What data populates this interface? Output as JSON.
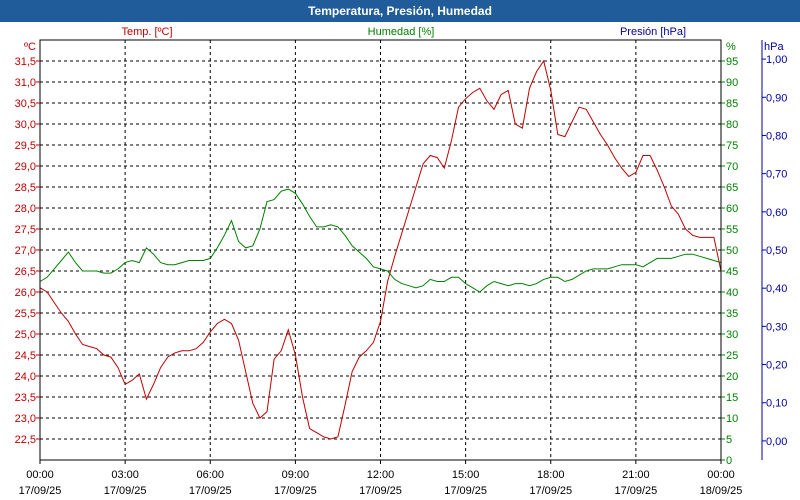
{
  "window": {
    "title": "Temperatura, Presión, Humedad"
  },
  "chart_data": {
    "type": "line",
    "title": "Temperatura, Presión, Humedad",
    "grid": true,
    "x_ticks": [
      {
        "time": "00:00",
        "date": "17/09/25"
      },
      {
        "time": "03:00",
        "date": "17/09/25"
      },
      {
        "time": "06:00",
        "date": "17/09/25"
      },
      {
        "time": "09:00",
        "date": "17/09/25"
      },
      {
        "time": "12:00",
        "date": "17/09/25"
      },
      {
        "time": "15:00",
        "date": "17/09/25"
      },
      {
        "time": "18:00",
        "date": "17/09/25"
      },
      {
        "time": "21:00",
        "date": "17/09/25"
      },
      {
        "time": "00:00",
        "date": "18/09/25"
      }
    ],
    "x_range_hours": [
      0,
      24
    ],
    "axes": {
      "temperature": {
        "label": "Temp. [ºC]",
        "unit": "ºC",
        "range": [
          22.0,
          32.0
        ],
        "ticks": [
          "22,5",
          "23,0",
          "23,5",
          "24,0",
          "24,5",
          "25,0",
          "25,5",
          "26,0",
          "26,5",
          "27,0",
          "27,5",
          "28,0",
          "28,5",
          "29,0",
          "29,5",
          "30,0",
          "30,5",
          "31,0",
          "31,5"
        ],
        "color": "#c00000"
      },
      "humidity": {
        "label": "Humedad [%]",
        "unit": "%",
        "range": [
          0,
          100
        ],
        "ticks": [
          "0",
          "5",
          "10",
          "15",
          "20",
          "25",
          "30",
          "35",
          "40",
          "45",
          "50",
          "55",
          "60",
          "65",
          "70",
          "75",
          "80",
          "85",
          "90",
          "95"
        ],
        "color": "#008000"
      },
      "pressure": {
        "label": "Presión [hPa]",
        "unit": "hPa",
        "range": [
          -0.05,
          1.05
        ],
        "ticks": [
          "0,00",
          "0,10",
          "0,20",
          "0,30",
          "0,40",
          "0,50",
          "0,60",
          "0,70",
          "0,80",
          "0,90",
          "1,00"
        ],
        "color": "#0000a0"
      }
    },
    "series": [
      {
        "name": "Temp. [ºC]",
        "axis": "temperature",
        "color": "#c00000",
        "points": [
          [
            0.0,
            26.1
          ],
          [
            0.25,
            26.0
          ],
          [
            0.5,
            25.75
          ],
          [
            0.75,
            25.5
          ],
          [
            1.0,
            25.3
          ],
          [
            1.25,
            25.0
          ],
          [
            1.5,
            24.75
          ],
          [
            1.75,
            24.7
          ],
          [
            2.0,
            24.65
          ],
          [
            2.25,
            24.5
          ],
          [
            2.5,
            24.45
          ],
          [
            2.75,
            24.2
          ],
          [
            3.0,
            23.8
          ],
          [
            3.25,
            23.9
          ],
          [
            3.5,
            24.05
          ],
          [
            3.75,
            23.45
          ],
          [
            4.0,
            23.8
          ],
          [
            4.25,
            24.2
          ],
          [
            4.5,
            24.45
          ],
          [
            4.75,
            24.55
          ],
          [
            5.0,
            24.6
          ],
          [
            5.25,
            24.6
          ],
          [
            5.5,
            24.65
          ],
          [
            5.75,
            24.8
          ],
          [
            6.0,
            25.05
          ],
          [
            6.25,
            25.25
          ],
          [
            6.5,
            25.35
          ],
          [
            6.75,
            25.25
          ],
          [
            7.0,
            24.85
          ],
          [
            7.25,
            24.1
          ],
          [
            7.5,
            23.35
          ],
          [
            7.75,
            23.0
          ],
          [
            8.0,
            23.15
          ],
          [
            8.25,
            24.4
          ],
          [
            8.5,
            24.6
          ],
          [
            8.75,
            25.1
          ],
          [
            9.0,
            24.5
          ],
          [
            9.25,
            23.5
          ],
          [
            9.5,
            22.75
          ],
          [
            9.75,
            22.65
          ],
          [
            10.0,
            22.55
          ],
          [
            10.25,
            22.5
          ],
          [
            10.5,
            22.55
          ],
          [
            10.75,
            23.3
          ],
          [
            11.0,
            24.1
          ],
          [
            11.25,
            24.45
          ],
          [
            11.5,
            24.6
          ],
          [
            11.75,
            24.8
          ],
          [
            12.0,
            25.3
          ],
          [
            12.25,
            26.25
          ],
          [
            12.5,
            26.85
          ],
          [
            12.75,
            27.4
          ],
          [
            13.0,
            27.95
          ],
          [
            13.25,
            28.5
          ],
          [
            13.5,
            29.05
          ],
          [
            13.75,
            29.25
          ],
          [
            14.0,
            29.2
          ],
          [
            14.25,
            28.95
          ],
          [
            14.5,
            29.6
          ],
          [
            14.75,
            30.4
          ],
          [
            15.0,
            30.6
          ],
          [
            15.25,
            30.75
          ],
          [
            15.5,
            30.85
          ],
          [
            15.75,
            30.55
          ],
          [
            16.0,
            30.35
          ],
          [
            16.25,
            30.7
          ],
          [
            16.5,
            30.8
          ],
          [
            16.75,
            30.0
          ],
          [
            17.0,
            29.9
          ],
          [
            17.25,
            30.85
          ],
          [
            17.5,
            31.25
          ],
          [
            17.75,
            31.5
          ],
          [
            18.0,
            30.8
          ],
          [
            18.25,
            29.75
          ],
          [
            18.5,
            29.7
          ],
          [
            18.75,
            30.05
          ],
          [
            19.0,
            30.4
          ],
          [
            19.25,
            30.35
          ],
          [
            19.5,
            30.05
          ],
          [
            19.75,
            29.75
          ],
          [
            20.0,
            29.5
          ],
          [
            20.25,
            29.2
          ],
          [
            20.5,
            28.95
          ],
          [
            20.75,
            28.75
          ],
          [
            21.0,
            28.85
          ],
          [
            21.25,
            29.25
          ],
          [
            21.5,
            29.25
          ],
          [
            21.75,
            28.9
          ],
          [
            22.0,
            28.5
          ],
          [
            22.25,
            28.05
          ],
          [
            22.5,
            27.85
          ],
          [
            22.75,
            27.5
          ],
          [
            23.0,
            27.35
          ],
          [
            23.25,
            27.3
          ],
          [
            23.5,
            27.3
          ],
          [
            23.75,
            27.3
          ],
          [
            24.0,
            26.5
          ]
        ]
      },
      {
        "name": "Humedad [%]",
        "axis": "humidity",
        "color": "#008000",
        "points": [
          [
            0.0,
            42.5
          ],
          [
            0.25,
            43.5
          ],
          [
            0.5,
            45.5
          ],
          [
            0.75,
            47.5
          ],
          [
            1.0,
            49.5
          ],
          [
            1.25,
            47.0
          ],
          [
            1.5,
            45.0
          ],
          [
            1.75,
            45.0
          ],
          [
            2.0,
            45.0
          ],
          [
            2.25,
            44.5
          ],
          [
            2.5,
            44.5
          ],
          [
            2.75,
            45.5
          ],
          [
            3.0,
            47.0
          ],
          [
            3.25,
            47.5
          ],
          [
            3.5,
            47.0
          ],
          [
            3.75,
            50.5
          ],
          [
            4.0,
            49.0
          ],
          [
            4.25,
            47.0
          ],
          [
            4.5,
            46.5
          ],
          [
            4.75,
            46.5
          ],
          [
            5.0,
            47.0
          ],
          [
            5.25,
            47.5
          ],
          [
            5.5,
            47.5
          ],
          [
            5.75,
            47.5
          ],
          [
            6.0,
            48.0
          ],
          [
            6.25,
            50.5
          ],
          [
            6.5,
            53.5
          ],
          [
            6.75,
            57.0
          ],
          [
            7.0,
            52.0
          ],
          [
            7.25,
            50.5
          ],
          [
            7.5,
            51.0
          ],
          [
            7.75,
            55.0
          ],
          [
            8.0,
            61.5
          ],
          [
            8.25,
            62.0
          ],
          [
            8.5,
            64.0
          ],
          [
            8.75,
            64.5
          ],
          [
            9.0,
            63.5
          ],
          [
            9.25,
            61.0
          ],
          [
            9.5,
            58.0
          ],
          [
            9.75,
            55.5
          ],
          [
            10.0,
            55.5
          ],
          [
            10.25,
            56.0
          ],
          [
            10.5,
            55.5
          ],
          [
            10.75,
            53.5
          ],
          [
            11.0,
            51.0
          ],
          [
            11.25,
            49.5
          ],
          [
            11.5,
            48.0
          ],
          [
            11.75,
            46.0
          ],
          [
            12.0,
            45.5
          ],
          [
            12.25,
            45.0
          ],
          [
            12.5,
            43.0
          ],
          [
            12.75,
            42.0
          ],
          [
            13.0,
            41.5
          ],
          [
            13.25,
            41.0
          ],
          [
            13.5,
            41.5
          ],
          [
            13.75,
            43.0
          ],
          [
            14.0,
            42.5
          ],
          [
            14.25,
            42.5
          ],
          [
            14.5,
            43.5
          ],
          [
            14.75,
            43.5
          ],
          [
            15.0,
            42.0
          ],
          [
            15.25,
            41.0
          ],
          [
            15.5,
            40.0
          ],
          [
            15.75,
            41.5
          ],
          [
            16.0,
            42.5
          ],
          [
            16.25,
            42.0
          ],
          [
            16.5,
            41.5
          ],
          [
            16.75,
            42.0
          ],
          [
            17.0,
            42.0
          ],
          [
            17.25,
            41.5
          ],
          [
            17.5,
            42.0
          ],
          [
            17.75,
            43.0
          ],
          [
            18.0,
            43.5
          ],
          [
            18.25,
            43.5
          ],
          [
            18.5,
            42.5
          ],
          [
            18.75,
            43.0
          ],
          [
            19.0,
            44.0
          ],
          [
            19.25,
            45.0
          ],
          [
            19.5,
            45.5
          ],
          [
            19.75,
            45.5
          ],
          [
            20.0,
            45.5
          ],
          [
            20.25,
            46.0
          ],
          [
            20.5,
            46.5
          ],
          [
            20.75,
            46.5
          ],
          [
            21.0,
            46.5
          ],
          [
            21.25,
            46.0
          ],
          [
            21.5,
            47.0
          ],
          [
            21.75,
            48.0
          ],
          [
            22.0,
            48.0
          ],
          [
            22.25,
            48.0
          ],
          [
            22.5,
            48.5
          ],
          [
            22.75,
            49.0
          ],
          [
            23.0,
            49.0
          ],
          [
            23.25,
            48.5
          ],
          [
            23.5,
            48.0
          ],
          [
            23.75,
            47.5
          ],
          [
            24.0,
            47.0
          ]
        ]
      },
      {
        "name": "Presión [hPa]",
        "axis": "pressure",
        "color": "#0000a0",
        "points": []
      }
    ]
  }
}
